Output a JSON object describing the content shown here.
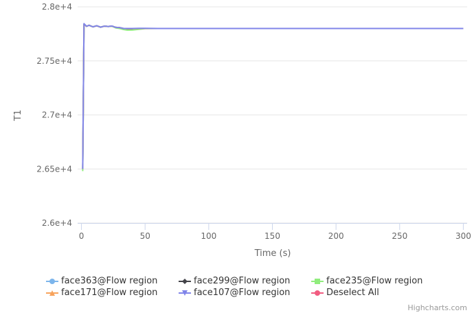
{
  "chart_data": {
    "type": "line",
    "xlabel": "Time (s)",
    "ylabel": "T1",
    "xlim": [
      -3,
      303
    ],
    "ylim": [
      26000,
      28000
    ],
    "x_ticks": [
      0,
      50,
      100,
      150,
      200,
      250,
      300
    ],
    "x_tick_labels": [
      "0",
      "50",
      "100",
      "150",
      "200",
      "250",
      "300"
    ],
    "y_ticks": [
      26000,
      26500,
      27000,
      27500,
      28000
    ],
    "y_tick_labels": [
      "2.6e+4",
      "2.65e+4",
      "2.7e+4",
      "2.75e+4",
      "2.8e+4"
    ],
    "grid": "horizontal",
    "legend_position": "bottom",
    "series": [
      {
        "name": "face363@Flow region",
        "color": "#7cb5ec",
        "marker": "circle",
        "x": [
          1,
          2,
          4,
          6,
          9,
          12,
          15,
          18,
          21,
          24,
          27,
          30,
          33,
          36,
          40,
          45,
          50,
          60,
          80,
          120,
          200,
          300
        ],
        "y": [
          26500,
          27840,
          27820,
          27830,
          27815,
          27825,
          27812,
          27822,
          27818,
          27822,
          27810,
          27808,
          27800,
          27798,
          27798,
          27800,
          27800,
          27800,
          27800,
          27800,
          27800,
          27800
        ]
      },
      {
        "name": "face299@Flow region",
        "color": "#434348",
        "marker": "diamond",
        "x": [
          1,
          2,
          4,
          6,
          9,
          12,
          15,
          18,
          21,
          24,
          27,
          30,
          33,
          36,
          40,
          45,
          50,
          60,
          80,
          120,
          200,
          300
        ],
        "y": [
          26500,
          27840,
          27820,
          27830,
          27815,
          27825,
          27812,
          27822,
          27818,
          27822,
          27810,
          27808,
          27800,
          27796,
          27796,
          27798,
          27800,
          27800,
          27800,
          27800,
          27800,
          27800
        ]
      },
      {
        "name": "face235@Flow region",
        "color": "#90ed7d",
        "marker": "square",
        "x": [
          1,
          2,
          4,
          6,
          9,
          12,
          15,
          18,
          21,
          24,
          27,
          30,
          33,
          36,
          40,
          45,
          50,
          60,
          80,
          120,
          200,
          300
        ],
        "y": [
          26480,
          27840,
          27820,
          27830,
          27815,
          27825,
          27812,
          27822,
          27818,
          27820,
          27805,
          27800,
          27790,
          27785,
          27786,
          27792,
          27798,
          27800,
          27800,
          27800,
          27800,
          27800
        ]
      },
      {
        "name": "face171@Flow region",
        "color": "#f7a35c",
        "marker": "triangle",
        "x": [
          1,
          2,
          4,
          6,
          9,
          12,
          15,
          18,
          21,
          24,
          27,
          30,
          33,
          36,
          40,
          45,
          50,
          60,
          80,
          120,
          200,
          300
        ],
        "y": [
          26500,
          27840,
          27820,
          27830,
          27815,
          27825,
          27812,
          27822,
          27818,
          27822,
          27810,
          27808,
          27800,
          27798,
          27798,
          27800,
          27800,
          27800,
          27800,
          27800,
          27800,
          27800
        ]
      },
      {
        "name": "face107@Flow region",
        "color": "#8085e9",
        "marker": "triangle-down",
        "x": [
          1,
          2,
          4,
          6,
          9,
          12,
          15,
          18,
          21,
          24,
          27,
          30,
          33,
          36,
          40,
          45,
          50,
          60,
          80,
          120,
          200,
          300
        ],
        "y": [
          26500,
          27845,
          27820,
          27830,
          27815,
          27826,
          27812,
          27822,
          27818,
          27823,
          27810,
          27808,
          27800,
          27800,
          27800,
          27802,
          27802,
          27800,
          27800,
          27800,
          27800,
          27800
        ]
      }
    ],
    "deselect": {
      "name": "Deselect All",
      "color": "#f15c80",
      "marker": "circle"
    },
    "credits": "Highcharts.com"
  }
}
